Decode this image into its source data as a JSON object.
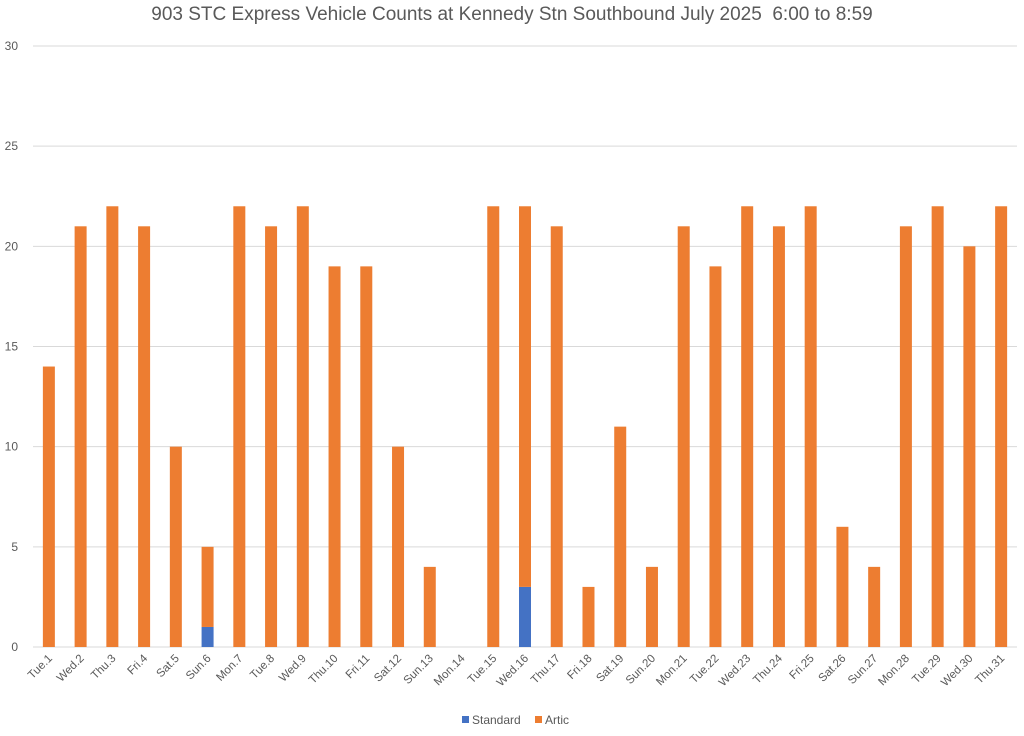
{
  "chart_data": {
    "type": "bar",
    "stacked": true,
    "title": "903 STC Express Vehicle Counts at Kennedy Stn Southbound July 2025  6:00 to 8:59",
    "xlabel": "",
    "ylabel": "",
    "ylim": [
      0,
      30
    ],
    "yticks": [
      0,
      5,
      10,
      15,
      20,
      25,
      30
    ],
    "grid": "horizontal",
    "legend_position": "bottom",
    "categories": [
      "Tue.1",
      "Wed.2",
      "Thu.3",
      "Fri.4",
      "Sat.5",
      "Sun.6",
      "Mon.7",
      "Tue.8",
      "Wed.9",
      "Thu.10",
      "Fri.11",
      "Sat.12",
      "Sun.13",
      "Mon.14",
      "Tue.15",
      "Wed.16",
      "Thu.17",
      "Fri.18",
      "Sat.19",
      "Sun.20",
      "Mon.21",
      "Tue.22",
      "Wed.23",
      "Thu.24",
      "Fri.25",
      "Sat.26",
      "Sun.27",
      "Mon.28",
      "Tue.29",
      "Wed.30",
      "Thu.31"
    ],
    "series": [
      {
        "name": "Standard",
        "color": "#4472C4",
        "values": [
          0,
          0,
          0,
          0,
          0,
          1,
          0,
          0,
          0,
          0,
          0,
          0,
          0,
          0,
          0,
          3,
          0,
          0,
          0,
          0,
          0,
          0,
          0,
          0,
          0,
          0,
          0,
          0,
          0,
          0,
          0
        ]
      },
      {
        "name": "Artic",
        "color": "#ED7D31",
        "values": [
          14,
          21,
          22,
          21,
          10,
          4,
          22,
          21,
          22,
          19,
          19,
          10,
          4,
          0,
          22,
          19,
          21,
          3,
          11,
          4,
          21,
          19,
          22,
          21,
          22,
          6,
          4,
          21,
          22,
          20,
          22
        ]
      }
    ],
    "gridline_color": "#D9D9D9"
  }
}
